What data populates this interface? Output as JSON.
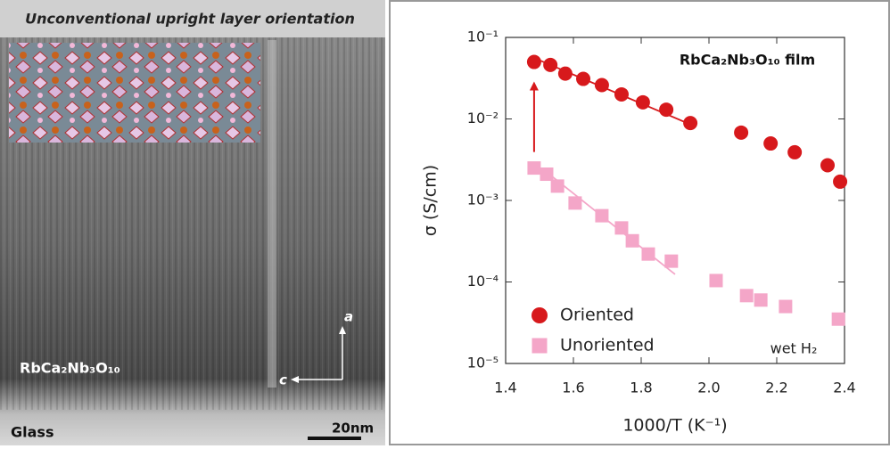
{
  "image_panel": {
    "title": "Unconventional upright layer orientation",
    "material_label": "RbCa₂Nb₃O₁₀",
    "substrate_label": "Glass",
    "scale_bar": "20nm",
    "axis_a": "a",
    "axis_c": "c"
  },
  "chart_data": {
    "type": "scatter",
    "annotation": "RbCa₂Nb₃O₁₀ film",
    "note": "wet H₂",
    "x_label": "1000/T (K⁻¹)",
    "y_label": "σ (S/cm)",
    "xlim": [
      1.4,
      2.4
    ],
    "xticks": [
      1.4,
      1.6,
      1.8,
      {
        "value": 2,
        "label": "2.0"
      },
      2.2,
      2.4
    ],
    "ylim": [
      1e-05,
      0.1
    ],
    "yticks": [
      {
        "value": 1e-05,
        "label": "10⁻⁵"
      },
      {
        "value": 0.0001,
        "label": "10⁻⁴"
      },
      {
        "value": 0.001,
        "label": "10⁻³"
      },
      {
        "value": 0.01,
        "label": "10⁻²"
      },
      {
        "value": 0.1,
        "label": "10⁻¹"
      }
    ],
    "log_y": true,
    "legend": "lower left",
    "series": [
      {
        "name": "Oriented",
        "color": "#d7191c",
        "marker": "circle",
        "x": [
          1.484,
          1.532,
          1.576,
          1.629,
          1.684,
          1.742,
          1.805,
          1.874,
          1.945,
          2.095,
          2.182,
          2.253,
          2.35,
          2.387
        ],
        "values": [
          0.05,
          0.046,
          0.036,
          0.031,
          0.026,
          0.02,
          0.016,
          0.013,
          0.0089,
          0.0068,
          0.005,
          0.0039,
          0.0027,
          0.0017
        ],
        "fit_x": [
          1.484,
          1.953
        ],
        "fit_values": [
          0.056,
          0.0083
        ]
      },
      {
        "name": "Unoriented",
        "color": "#f4a6c8",
        "marker": "square",
        "x": [
          1.484,
          1.521,
          1.553,
          1.605,
          1.684,
          1.742,
          1.774,
          1.821,
          1.889,
          2.021,
          2.111,
          2.153,
          2.226,
          2.382
        ],
        "values": [
          0.0025,
          0.0021,
          0.0015,
          0.00093,
          0.00065,
          0.00046,
          0.00032,
          0.00022,
          0.00018,
          0.000104,
          6.8e-05,
          6e-05,
          5e-05,
          3.5e-05
        ],
        "fit_x": [
          1.511,
          1.9
        ],
        "fit_values": [
          0.0024,
          0.000124
        ]
      }
    ]
  }
}
